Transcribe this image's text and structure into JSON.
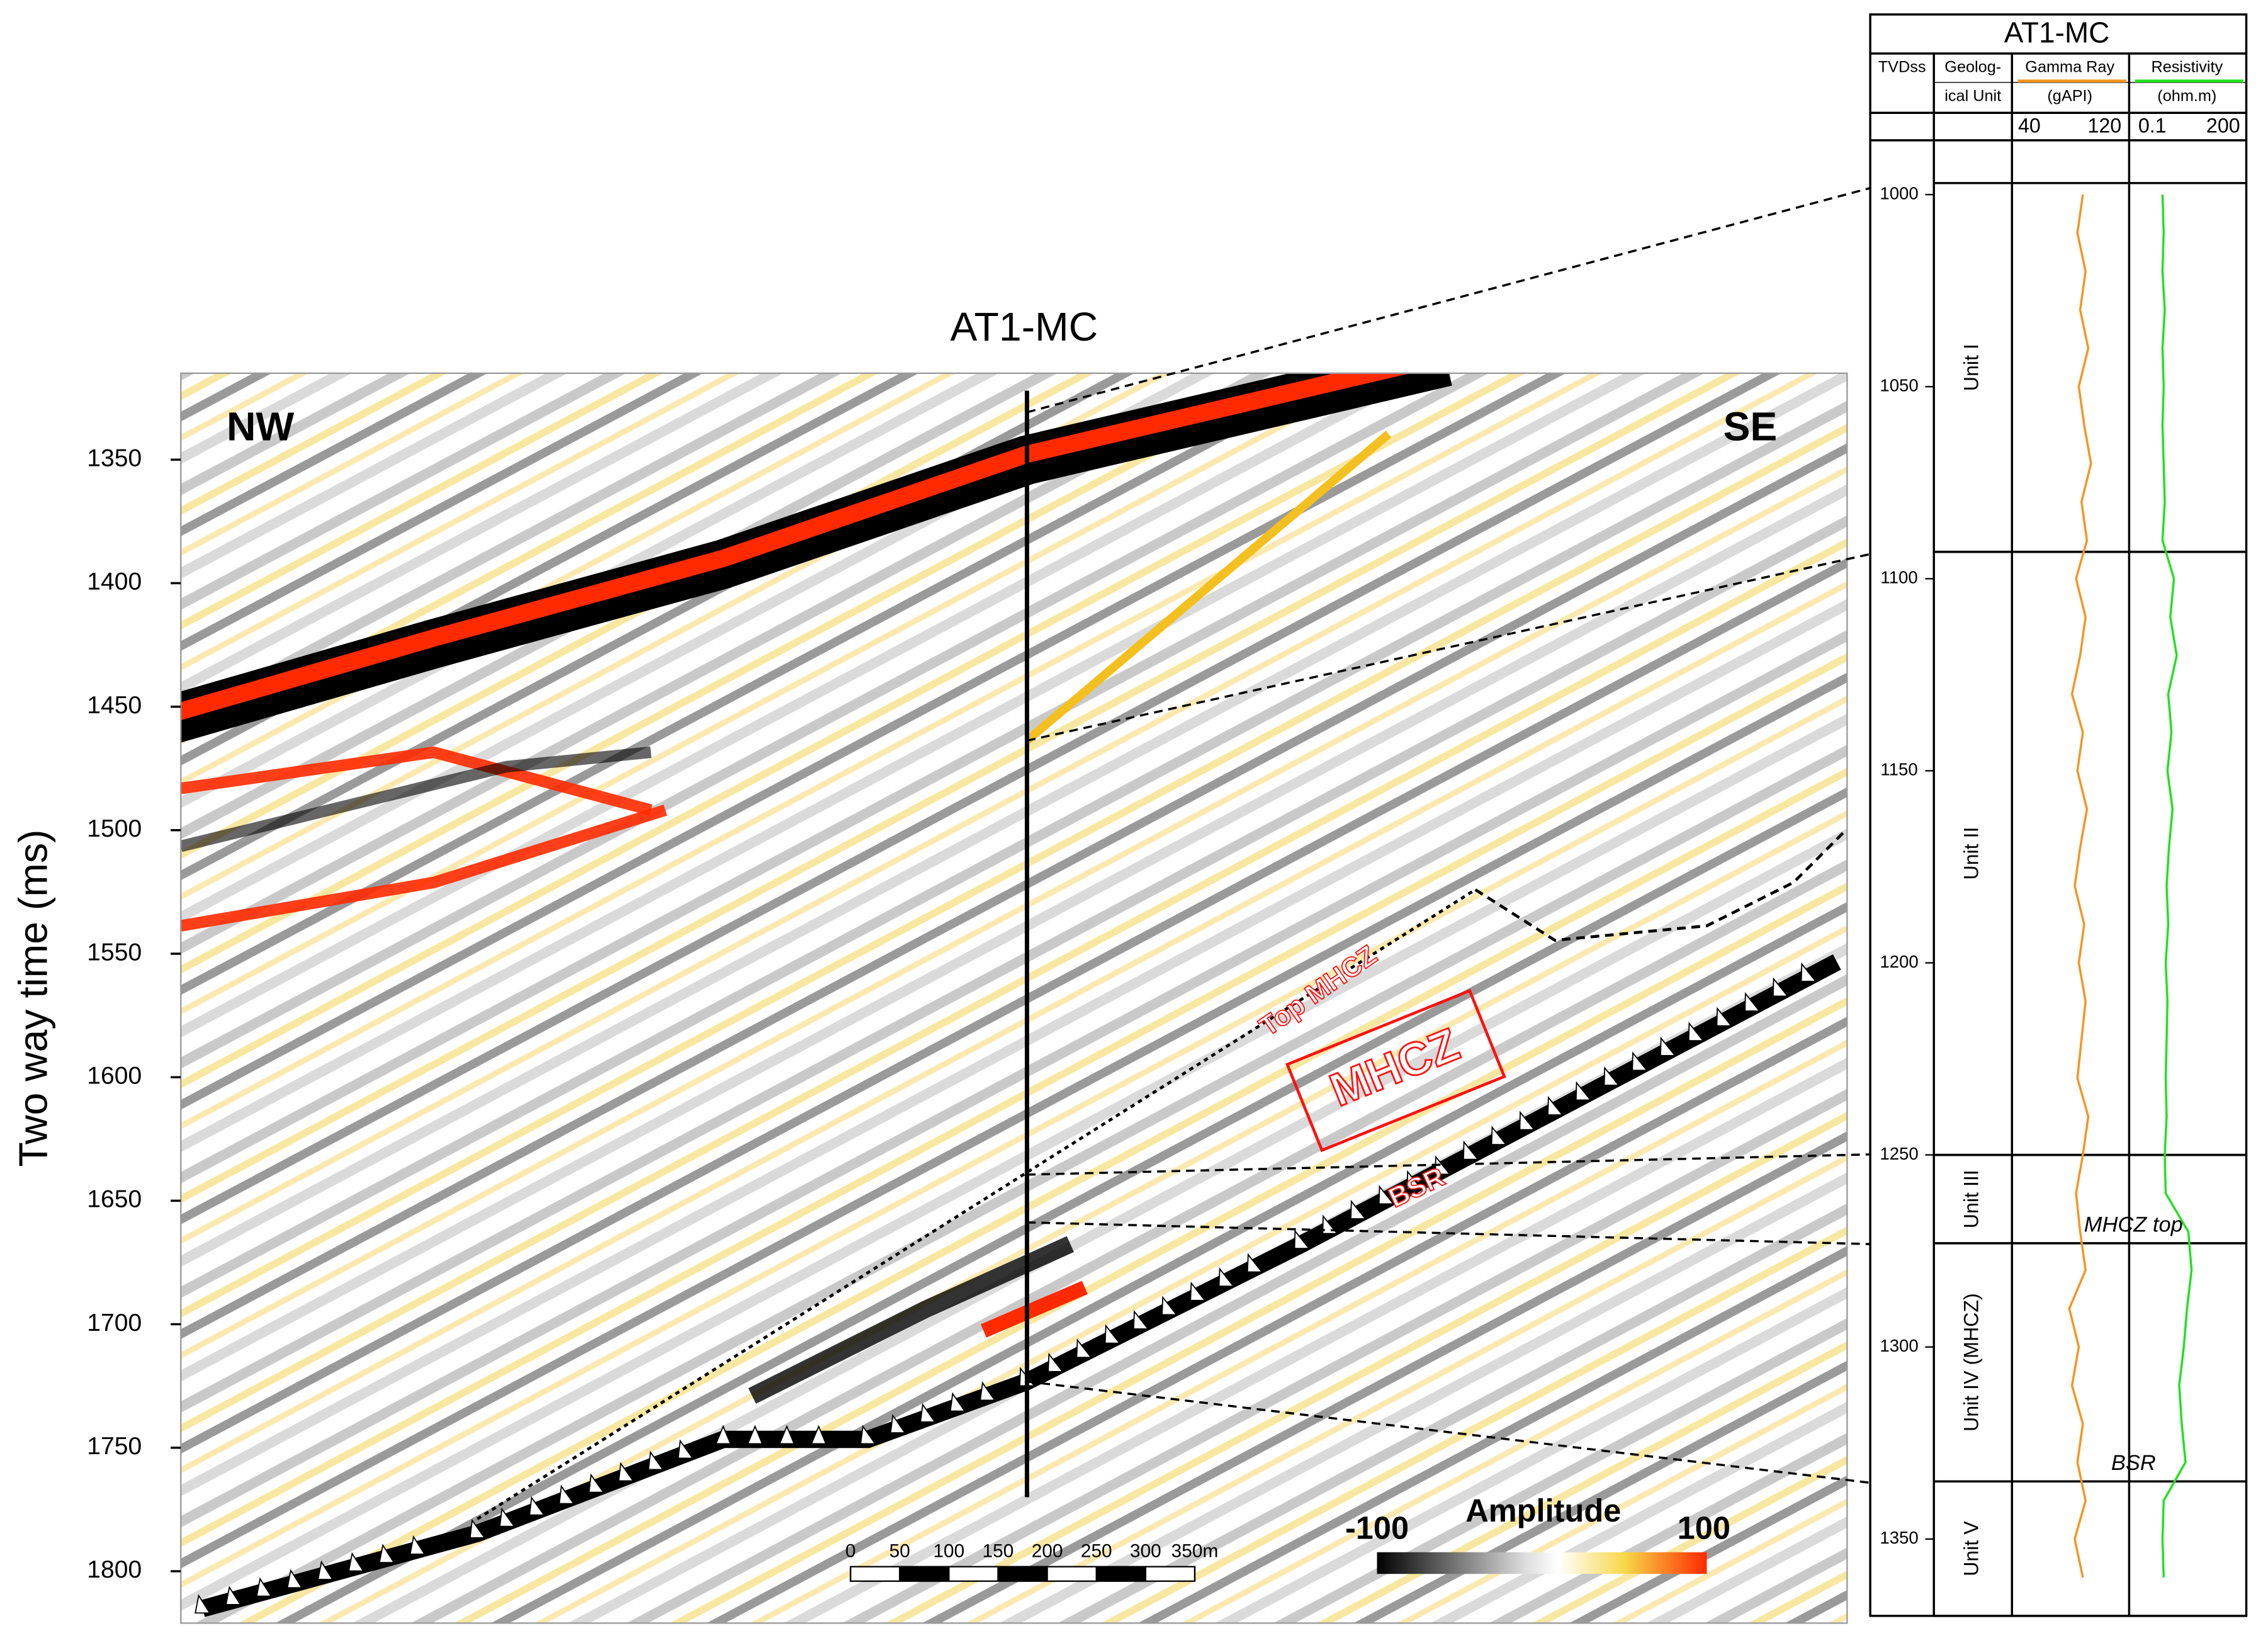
{
  "seismic_section": {
    "well_name": "AT1-MC",
    "left_label": "NW",
    "right_label": "SE",
    "y_label": "Two way time (ms)",
    "ylim": [
      1315,
      1821
    ],
    "yticks": [
      1350,
      1400,
      1450,
      1500,
      1550,
      1600,
      1650,
      1700,
      1750,
      1800
    ],
    "annotations": {
      "top_mhcz": "Top MHCZ",
      "mhcz": "MHCZ",
      "bsr": "BSR"
    },
    "colorbar": {
      "title": "Amplitude",
      "min": -100,
      "max": 100
    },
    "scale_bar": {
      "ticks": [
        0,
        50,
        100,
        150,
        200,
        250,
        300,
        {
          "value": 350,
          "label": "350m"
        }
      ]
    }
  },
  "well_log": {
    "title": "AT1-MC",
    "headers": {
      "depth": "TVDss",
      "unit_1": "Geolog-",
      "unit_2": "ical Unit"
    },
    "depth": [
      1000,
      1010,
      1020,
      1030,
      1040,
      1050,
      1060,
      1070,
      1080,
      1090,
      1100,
      1110,
      1120,
      1130,
      1140,
      1150,
      1160,
      1170,
      1180,
      1190,
      1200,
      1210,
      1220,
      1230,
      1240,
      1250,
      1260,
      1270,
      1280,
      1290,
      1300,
      1310,
      1320,
      1330,
      1340,
      1350,
      1360
    ],
    "gamma_ray": {
      "name": "Gamma Ray",
      "unit": "(gAPI)",
      "xlim": [
        40,
        120
      ],
      "color": "#f7941d",
      "values": [
        88,
        84,
        90,
        86,
        92,
        85,
        89,
        94,
        87,
        91,
        83,
        90,
        86,
        80,
        88,
        84,
        91,
        86,
        82,
        89,
        85,
        90,
        87,
        84,
        92,
        88,
        83,
        86,
        90,
        78,
        85,
        80,
        88,
        84,
        90,
        82,
        88
      ]
    },
    "resistivity": {
      "name": "Resistivity",
      "unit": "(ohm.m)",
      "xlim": [
        0.1,
        200
      ],
      "log": true,
      "color": "#22e01e",
      "values": [
        0.9,
        1.0,
        0.9,
        1.1,
        0.9,
        1.0,
        0.9,
        1.0,
        1.1,
        0.9,
        2.5,
        1.8,
        3.2,
        1.5,
        2.0,
        1.4,
        2.2,
        1.6,
        1.3,
        1.5,
        1.2,
        1.4,
        1.3,
        1.2,
        1.3,
        1.1,
        1.2,
        9,
        12,
        8,
        6,
        4,
        5,
        7,
        1.0,
        0.9,
        1.0
      ]
    },
    "ylim": [
      987,
      1370
    ],
    "yticks": [
      1000,
      1050,
      1100,
      1150,
      1200,
      1250,
      1300,
      1350
    ],
    "units": [
      {
        "label": "Unit I",
        "top": 997,
        "base": 1093
      },
      {
        "label": "Unit II",
        "top": 1093,
        "base": 1250
      },
      {
        "label": "Unit III",
        "top": 1250,
        "base": 1273
      },
      {
        "label": "Unit IV (MHCZ)",
        "top": 1273,
        "base": 1335
      },
      {
        "label": "Unit V",
        "top": 1335,
        "base": 1370
      }
    ],
    "annotations": [
      {
        "text": "MHCZ top",
        "depth": 1273
      },
      {
        "text": "BSR",
        "depth": 1335
      }
    ]
  }
}
